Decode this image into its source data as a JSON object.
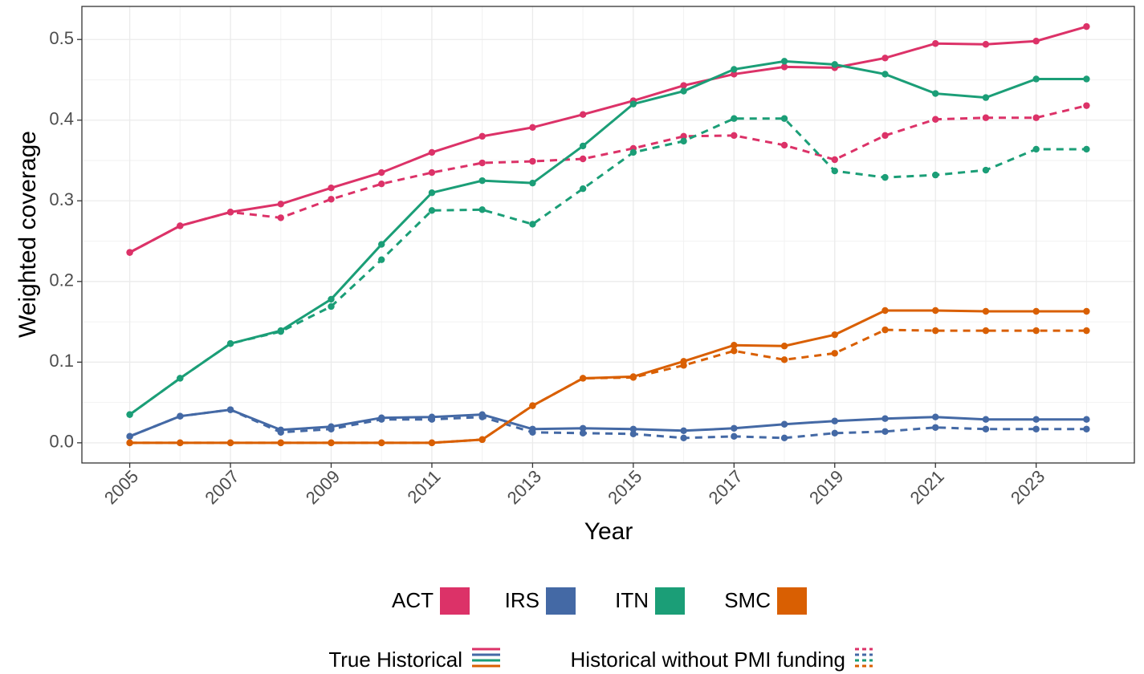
{
  "chart_data": {
    "type": "line",
    "xlabel": "Year",
    "ylabel": "Weighted coverage",
    "x": [
      2005,
      2006,
      2007,
      2008,
      2009,
      2010,
      2011,
      2012,
      2013,
      2014,
      2015,
      2016,
      2017,
      2018,
      2019,
      2020,
      2021,
      2022,
      2023,
      2024
    ],
    "xlim": [
      2004.05,
      2024.95
    ],
    "xticks": [
      2005,
      2007,
      2009,
      2011,
      2013,
      2015,
      2017,
      2019,
      2021,
      2023
    ],
    "ylim": [
      -0.025,
      0.541
    ],
    "yticks": [
      {
        "value": 0,
        "label": "0.0"
      },
      0.1,
      0.2,
      0.3,
      0.4,
      0.5
    ],
    "grid": true,
    "legend": "bottom",
    "linetypes": [
      {
        "name": "True Historical",
        "dash": "none"
      },
      {
        "name": "Historical without PMI funding",
        "dash": "9,7"
      }
    ],
    "series": [
      {
        "name": "ACT",
        "color": "#dc3268",
        "lines": [
          [
            0.236,
            0.269,
            0.286,
            0.296,
            0.316,
            0.335,
            0.36,
            0.38,
            0.391,
            0.407,
            0.424,
            0.443,
            0.457,
            0.466,
            0.465,
            0.477,
            0.495,
            0.494,
            0.498,
            0.516
          ],
          [
            0.236,
            0.269,
            0.286,
            0.279,
            0.302,
            0.321,
            0.335,
            0.347,
            0.349,
            0.352,
            0.365,
            0.38,
            0.381,
            0.369,
            0.351,
            0.381,
            0.401,
            0.403,
            0.403,
            0.418
          ]
        ]
      },
      {
        "name": "IRS",
        "color": "#4469a5",
        "lines": [
          [
            0.008,
            0.033,
            0.041,
            0.016,
            0.02,
            0.031,
            0.032,
            0.035,
            0.017,
            0.018,
            0.017,
            0.015,
            0.018,
            0.023,
            0.027,
            0.03,
            0.032,
            0.029,
            0.029,
            0.029
          ],
          [
            0.008,
            0.033,
            0.041,
            0.013,
            0.017,
            0.029,
            0.029,
            0.032,
            0.013,
            0.012,
            0.011,
            0.006,
            0.008,
            0.006,
            0.012,
            0.014,
            0.019,
            0.017,
            0.017,
            0.017
          ]
        ]
      },
      {
        "name": "ITN",
        "color": "#1b9e77",
        "lines": [
          [
            0.035,
            0.08,
            0.123,
            0.139,
            0.178,
            0.246,
            0.31,
            0.325,
            0.322,
            0.368,
            0.42,
            0.436,
            0.463,
            0.473,
            0.469,
            0.457,
            0.433,
            0.428,
            0.451,
            0.451
          ],
          [
            0.035,
            0.08,
            0.123,
            0.138,
            0.169,
            0.227,
            0.288,
            0.289,
            0.271,
            0.315,
            0.36,
            0.374,
            0.402,
            0.402,
            0.337,
            0.329,
            0.332,
            0.338,
            0.364,
            0.364
          ]
        ]
      },
      {
        "name": "SMC",
        "color": "#d95f02",
        "lines": [
          [
            0,
            0,
            0,
            0,
            0,
            0,
            0,
            0.004,
            0.046,
            0.08,
            0.082,
            0.101,
            0.121,
            0.12,
            0.134,
            0.164,
            0.164,
            0.163,
            0.163,
            0.163
          ],
          [
            0,
            0,
            0,
            0,
            0,
            0,
            0,
            0.004,
            0.046,
            0.08,
            0.081,
            0.096,
            0.114,
            0.103,
            0.111,
            0.14,
            0.139,
            0.139,
            0.139,
            0.139
          ]
        ]
      }
    ]
  }
}
